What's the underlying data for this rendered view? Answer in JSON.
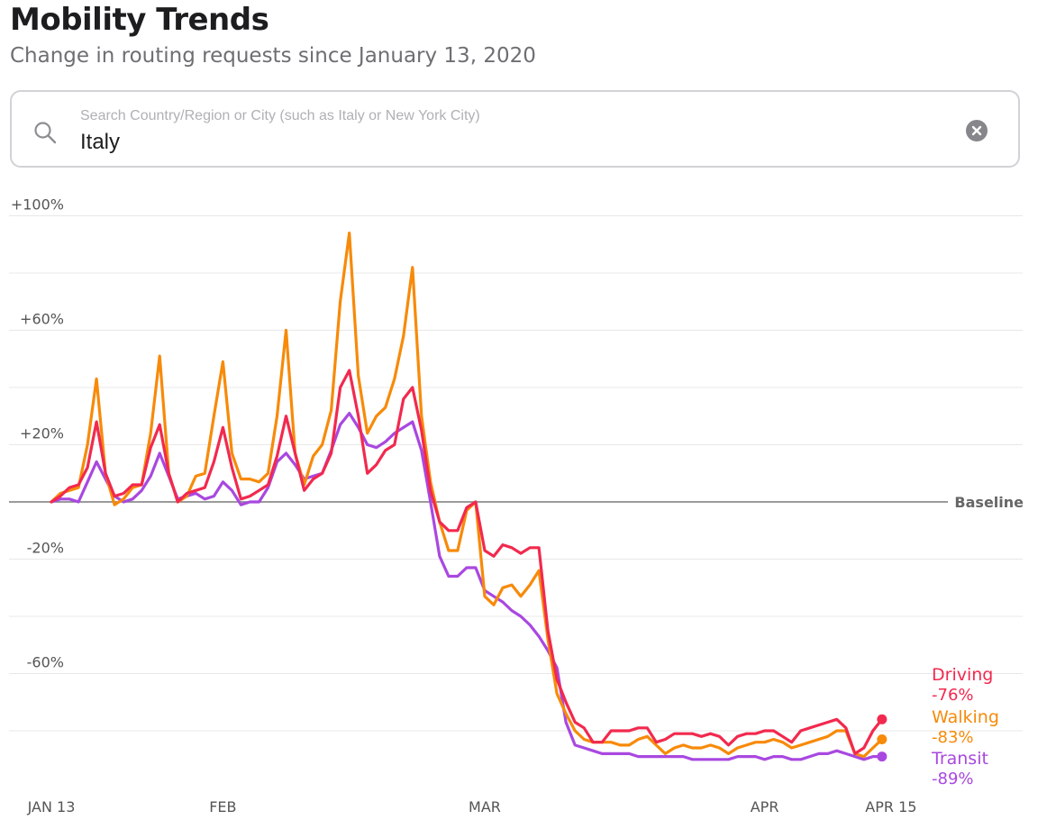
{
  "header": {
    "title": "Mobility Trends",
    "subtitle": "Change in routing requests since January 13, 2020"
  },
  "search": {
    "placeholder": "Search Country/Region or City (such as Italy or New York City)",
    "value": "Italy",
    "icon": "search-icon",
    "clear_icon": "clear-icon"
  },
  "chart_data": {
    "type": "line",
    "title": "",
    "xlabel": "",
    "ylabel": "",
    "ylim": [
      -100,
      100
    ],
    "y_ticks": [
      {
        "value": 100,
        "label": "+100%"
      },
      {
        "value": 60,
        "label": "+60%"
      },
      {
        "value": 20,
        "label": "+20%"
      },
      {
        "value": -20,
        "label": "-20%"
      },
      {
        "value": -60,
        "label": "-60%"
      }
    ],
    "y_gridlines": [
      100,
      80,
      60,
      40,
      20,
      -20,
      -40,
      -60,
      -80
    ],
    "baseline": {
      "value": 0,
      "label": "Baseline"
    },
    "x_ticks": [
      {
        "day": 0,
        "label": "JAN 13"
      },
      {
        "day": 19,
        "label": "FEB"
      },
      {
        "day": 48,
        "label": "MAR"
      },
      {
        "day": 79,
        "label": "APR"
      },
      {
        "day": 93,
        "label": "APR 15"
      }
    ],
    "x_start": "2020-01-13",
    "x_end": "2020-04-15",
    "grid": true,
    "legend": "right, at line ends",
    "series": [
      {
        "name": "Driving",
        "final_label": "-76%",
        "color": "#f2294e",
        "values": [
          0,
          2,
          5,
          6,
          12,
          28,
          10,
          2,
          3,
          6,
          6,
          19,
          27,
          10,
          0,
          3,
          4,
          5,
          14,
          26,
          12,
          1,
          2,
          4,
          6,
          16,
          30,
          17,
          4,
          8,
          10,
          17,
          40,
          46,
          30,
          10,
          13,
          18,
          20,
          36,
          40,
          25,
          4,
          -7,
          -10,
          -10,
          -2,
          0,
          -17,
          -19,
          -15,
          -16,
          -18,
          -16,
          -16,
          -45,
          -62,
          -70,
          -77,
          -79,
          -84,
          -84,
          -80,
          -80,
          -80,
          -79,
          -79,
          -84,
          -83,
          -81,
          -81,
          -81,
          -82,
          -81,
          -82,
          -85,
          -82,
          -81,
          -81,
          -80,
          -80,
          -82,
          -84,
          -80,
          -79,
          -78,
          -77,
          -76,
          -79,
          -88,
          -86,
          -80,
          -76
        ]
      },
      {
        "name": "Walking",
        "final_label": "-83%",
        "color": "#f78a09",
        "values": [
          0,
          3,
          4,
          5,
          20,
          43,
          10,
          -1,
          1,
          5,
          6,
          24,
          51,
          10,
          0,
          2,
          9,
          10,
          30,
          49,
          17,
          8,
          8,
          7,
          10,
          30,
          60,
          17,
          6,
          16,
          20,
          32,
          70,
          94,
          44,
          24,
          30,
          33,
          43,
          58,
          82,
          30,
          7,
          -7,
          -17,
          -17,
          -3,
          0,
          -33,
          -36,
          -30,
          -29,
          -33,
          -29,
          -24,
          -48,
          -67,
          -74,
          -80,
          -83,
          -84,
          -84,
          -84,
          -85,
          -85,
          -83,
          -82,
          -85,
          -88,
          -86,
          -85,
          -86,
          -86,
          -85,
          -86,
          -88,
          -86,
          -85,
          -84,
          -84,
          -83,
          -84,
          -86,
          -85,
          -84,
          -83,
          -82,
          -80,
          -80,
          -88,
          -89,
          -86,
          -83
        ]
      },
      {
        "name": "Transit",
        "final_label": "-89%",
        "color": "#a948e0",
        "values": [
          0,
          1,
          1,
          0,
          7,
          14,
          8,
          2,
          0,
          1,
          4,
          9,
          17,
          9,
          1,
          2,
          3,
          1,
          2,
          7,
          4,
          -1,
          0,
          0,
          5,
          14,
          17,
          13,
          8,
          9,
          10,
          18,
          27,
          31,
          26,
          20,
          19,
          21,
          24,
          26,
          28,
          18,
          0,
          -19,
          -26,
          -26,
          -23,
          -23,
          -31,
          -33,
          -35,
          -38,
          -40,
          -43,
          -47,
          -52,
          -58,
          -77,
          -85,
          -86,
          -87,
          -88,
          -88,
          -88,
          -88,
          -89,
          -89,
          -89,
          -89,
          -89,
          -89,
          -90,
          -90,
          -90,
          -90,
          -90,
          -89,
          -89,
          -89,
          -90,
          -89,
          -89,
          -90,
          -90,
          -89,
          -88,
          -88,
          -87,
          -88,
          -89,
          -90,
          -89,
          -89
        ]
      }
    ]
  }
}
